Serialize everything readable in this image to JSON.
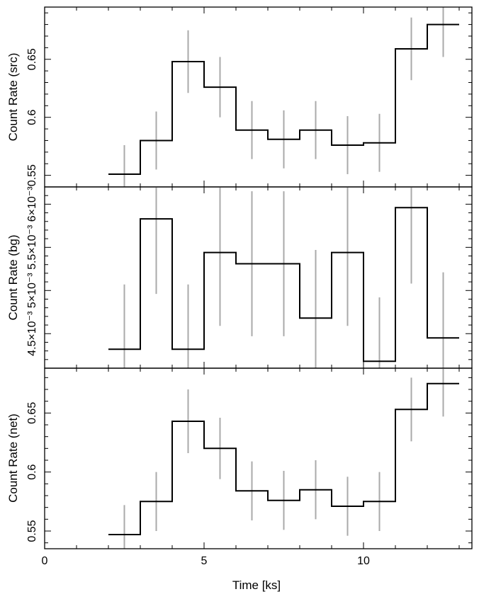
{
  "chart_data": [
    {
      "type": "line",
      "step": true,
      "ylabel": "Count Rate (src)",
      "xlim": [
        0,
        13.4
      ],
      "ylim": [
        0.54,
        0.695
      ],
      "yticks": [
        0.55,
        0.6,
        0.65
      ],
      "ytick_labels": [
        "0.55",
        "0.6",
        "0.65"
      ],
      "bin_edges": [
        2.0,
        3.0,
        4.0,
        5.0,
        6.0,
        7.0,
        8.0,
        9.0,
        10.0,
        11.0,
        12.0,
        13.0
      ],
      "x": [
        2.5,
        3.5,
        4.5,
        5.5,
        6.5,
        7.5,
        8.5,
        9.5,
        10.5,
        11.5,
        12.5
      ],
      "values": [
        0.551,
        0.58,
        0.648,
        0.626,
        0.589,
        0.581,
        0.589,
        0.576,
        0.578,
        0.659,
        0.68
      ],
      "errors": [
        0.025,
        0.025,
        0.027,
        0.026,
        0.025,
        0.025,
        0.025,
        0.025,
        0.025,
        0.027,
        0.028
      ],
      "line_color": "#000000",
      "error_color": "#aaaaaa"
    },
    {
      "type": "line",
      "step": true,
      "ylabel": "Count Rate (bg)",
      "xlim": [
        0,
        13.4
      ],
      "ylim": [
        0.0041,
        0.0062
      ],
      "yticks": [
        0.0045,
        0.005,
        0.0055,
        0.006
      ],
      "ytick_labels": [
        "4.5×10⁻³",
        "5×10⁻³",
        "5.5×10⁻³",
        "6×10⁻³"
      ],
      "bin_edges": [
        2.0,
        3.0,
        4.0,
        5.0,
        6.0,
        7.0,
        8.0,
        9.0,
        10.0,
        11.0,
        12.0,
        13.0
      ],
      "x": [
        2.5,
        3.5,
        4.5,
        5.5,
        6.5,
        7.5,
        8.5,
        9.5,
        10.5,
        11.5,
        12.5
      ],
      "values": [
        0.00432,
        0.00583,
        0.00432,
        0.00544,
        0.00531,
        0.00531,
        0.00468,
        0.00544,
        0.00418,
        0.00596,
        0.00445
      ],
      "errors": [
        0.00075,
        0.00087,
        0.00075,
        0.00085,
        0.00084,
        0.00084,
        0.00079,
        0.00085,
        0.00074,
        0.00088,
        0.00076
      ],
      "line_color": "#000000",
      "error_color": "#aaaaaa"
    },
    {
      "type": "line",
      "step": true,
      "xlabel": "Time [ks]",
      "ylabel": "Count Rate (net)",
      "xlim": [
        0,
        13.4
      ],
      "xticks": [
        0,
        5,
        10
      ],
      "xtick_labels": [
        "0",
        "5",
        "10"
      ],
      "ylim": [
        0.535,
        0.688
      ],
      "yticks": [
        0.55,
        0.6,
        0.65
      ],
      "ytick_labels": [
        "0.55",
        "0.6",
        "0.65"
      ],
      "bin_edges": [
        2.0,
        3.0,
        4.0,
        5.0,
        6.0,
        7.0,
        8.0,
        9.0,
        10.0,
        11.0,
        12.0,
        13.0
      ],
      "x": [
        2.5,
        3.5,
        4.5,
        5.5,
        6.5,
        7.5,
        8.5,
        9.5,
        10.5,
        11.5,
        12.5
      ],
      "values": [
        0.547,
        0.575,
        0.643,
        0.62,
        0.584,
        0.576,
        0.585,
        0.571,
        0.575,
        0.653,
        0.675
      ],
      "errors": [
        0.025,
        0.025,
        0.027,
        0.026,
        0.025,
        0.025,
        0.025,
        0.025,
        0.025,
        0.027,
        0.028
      ],
      "line_color": "#000000",
      "error_color": "#aaaaaa"
    }
  ]
}
